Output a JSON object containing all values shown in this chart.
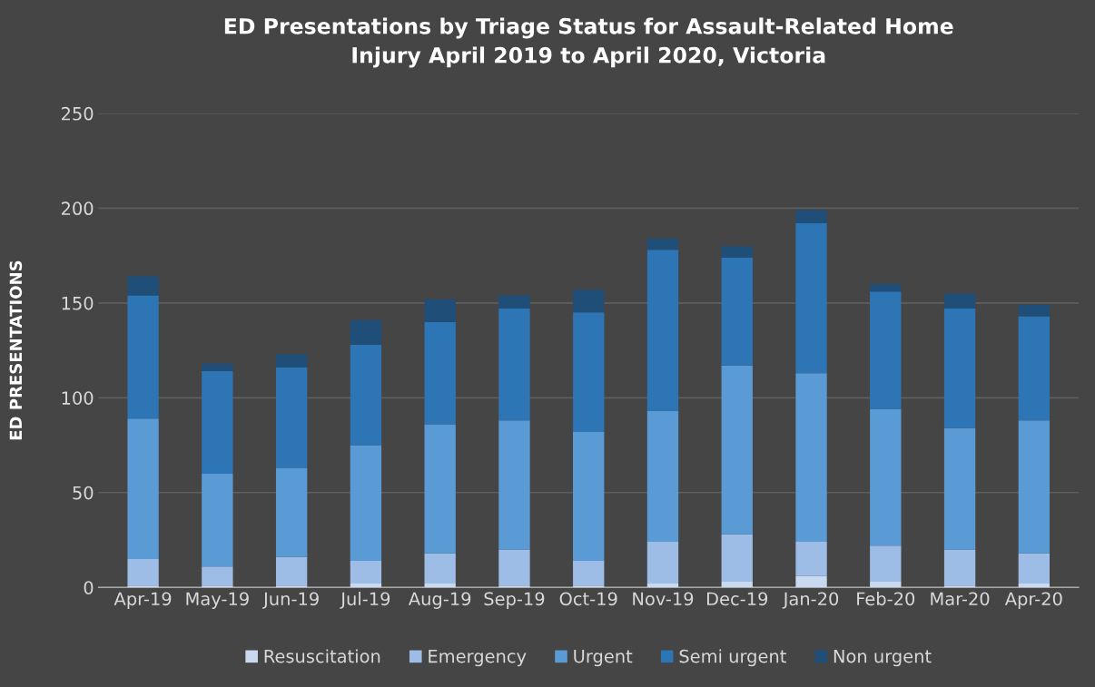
{
  "chart_data": {
    "type": "bar",
    "stacked": true,
    "title": "ED Presentations by Triage Status for Assault-Related Home\nInjury April 2019 to April 2020, Victoria",
    "ylabel": "ED PRESENTATIONS",
    "categories": [
      "Apr-19",
      "May-19",
      "Jun-19",
      "Jul-19",
      "Aug-19",
      "Sep-19",
      "Oct-19",
      "Nov-19",
      "Dec-19",
      "Jan-20",
      "Feb-20",
      "Mar-20",
      "Apr-20"
    ],
    "series": [
      {
        "name": "Resuscitation",
        "color": "#c9daf0",
        "values": [
          1,
          1,
          1,
          2,
          2,
          1,
          1,
          2,
          3,
          6,
          3,
          1,
          2
        ]
      },
      {
        "name": "Emergency",
        "color": "#9dbde6",
        "values": [
          14,
          10,
          15,
          12,
          16,
          19,
          13,
          22,
          25,
          18,
          19,
          19,
          16
        ]
      },
      {
        "name": "Urgent",
        "color": "#5b9bd5",
        "values": [
          74,
          49,
          47,
          61,
          68,
          68,
          68,
          69,
          89,
          89,
          72,
          64,
          70
        ]
      },
      {
        "name": "Semi urgent",
        "color": "#2e75b6",
        "values": [
          65,
          54,
          53,
          53,
          54,
          59,
          63,
          85,
          57,
          79,
          62,
          63,
          55
        ]
      },
      {
        "name": "Non urgent",
        "color": "#1f4e79",
        "values": [
          10,
          4,
          7,
          13,
          12,
          7,
          12,
          6,
          6,
          7,
          4,
          8,
          6
        ]
      }
    ],
    "ylim": [
      0,
      250
    ],
    "yticks": [
      0,
      50,
      100,
      150,
      200,
      250
    ],
    "grid": "y",
    "legend": "bottom"
  }
}
